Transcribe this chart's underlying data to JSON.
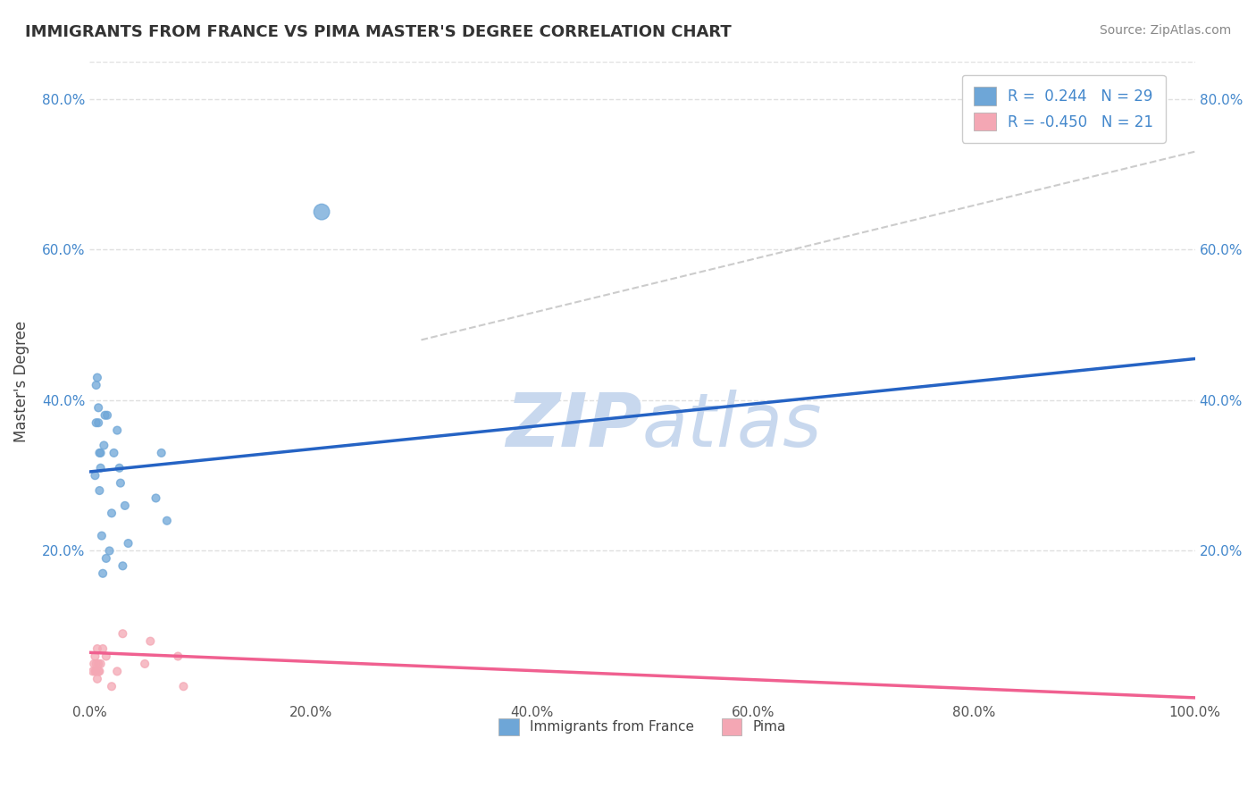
{
  "title": "IMMIGRANTS FROM FRANCE VS PIMA MASTER'S DEGREE CORRELATION CHART",
  "source_text": "Source: ZipAtlas.com",
  "ylabel": "Master's Degree",
  "xlim": [
    0,
    1.0
  ],
  "ylim": [
    0,
    0.85
  ],
  "x_tick_labels": [
    "0.0%",
    "20.0%",
    "40.0%",
    "60.0%",
    "80.0%",
    "100.0%"
  ],
  "x_tick_vals": [
    0.0,
    0.2,
    0.4,
    0.6,
    0.8,
    1.0
  ],
  "y_tick_labels": [
    "20.0%",
    "40.0%",
    "60.0%",
    "80.0%"
  ],
  "y_tick_vals": [
    0.2,
    0.4,
    0.6,
    0.8
  ],
  "blue_color": "#6ea6d7",
  "pink_color": "#f4a7b4",
  "blue_line_color": "#2563c4",
  "pink_line_color": "#f06090",
  "trendline_gray": "#cccccc",
  "watermark_zip_color": "#c8d8ee",
  "watermark_atlas_color": "#c8d8ee",
  "background_color": "#ffffff",
  "grid_color": "#e0e0e0",
  "blue_scatter_x": [
    0.005,
    0.006,
    0.006,
    0.007,
    0.008,
    0.008,
    0.009,
    0.009,
    0.01,
    0.01,
    0.011,
    0.012,
    0.013,
    0.014,
    0.015,
    0.016,
    0.018,
    0.02,
    0.022,
    0.025,
    0.027,
    0.028,
    0.03,
    0.032,
    0.035,
    0.06,
    0.065,
    0.07,
    0.21
  ],
  "blue_scatter_y": [
    0.3,
    0.42,
    0.37,
    0.43,
    0.37,
    0.39,
    0.28,
    0.33,
    0.31,
    0.33,
    0.22,
    0.17,
    0.34,
    0.38,
    0.19,
    0.38,
    0.2,
    0.25,
    0.33,
    0.36,
    0.31,
    0.29,
    0.18,
    0.26,
    0.21,
    0.27,
    0.33,
    0.24,
    0.65
  ],
  "blue_scatter_size": [
    40,
    40,
    40,
    40,
    40,
    40,
    40,
    40,
    40,
    40,
    40,
    40,
    40,
    40,
    40,
    40,
    40,
    40,
    40,
    40,
    40,
    40,
    40,
    40,
    40,
    40,
    40,
    40,
    160
  ],
  "pink_scatter_x": [
    0.003,
    0.004,
    0.005,
    0.005,
    0.006,
    0.006,
    0.007,
    0.007,
    0.008,
    0.008,
    0.009,
    0.01,
    0.012,
    0.015,
    0.02,
    0.025,
    0.03,
    0.05,
    0.055,
    0.08,
    0.085
  ],
  "pink_scatter_y": [
    0.04,
    0.05,
    0.04,
    0.06,
    0.04,
    0.05,
    0.03,
    0.07,
    0.04,
    0.05,
    0.04,
    0.05,
    0.07,
    0.06,
    0.02,
    0.04,
    0.09,
    0.05,
    0.08,
    0.06,
    0.02
  ],
  "pink_scatter_size": [
    40,
    40,
    40,
    40,
    40,
    40,
    40,
    40,
    40,
    40,
    40,
    40,
    40,
    40,
    40,
    40,
    40,
    40,
    40,
    40,
    40
  ],
  "blue_trendline_x": [
    0.0,
    1.0
  ],
  "blue_trendline_y": [
    0.305,
    0.455
  ],
  "pink_trendline_x": [
    0.0,
    1.0
  ],
  "pink_trendline_y": [
    0.065,
    0.005
  ],
  "gray_trendline_x": [
    0.3,
    1.0
  ],
  "gray_trendline_y": [
    0.48,
    0.73
  ],
  "legend_r1": "R =  0.244   N = 29",
  "legend_r2": "R = -0.450   N = 21",
  "legend_blue_label": "Immigrants from France",
  "legend_pink_label": "Pima"
}
